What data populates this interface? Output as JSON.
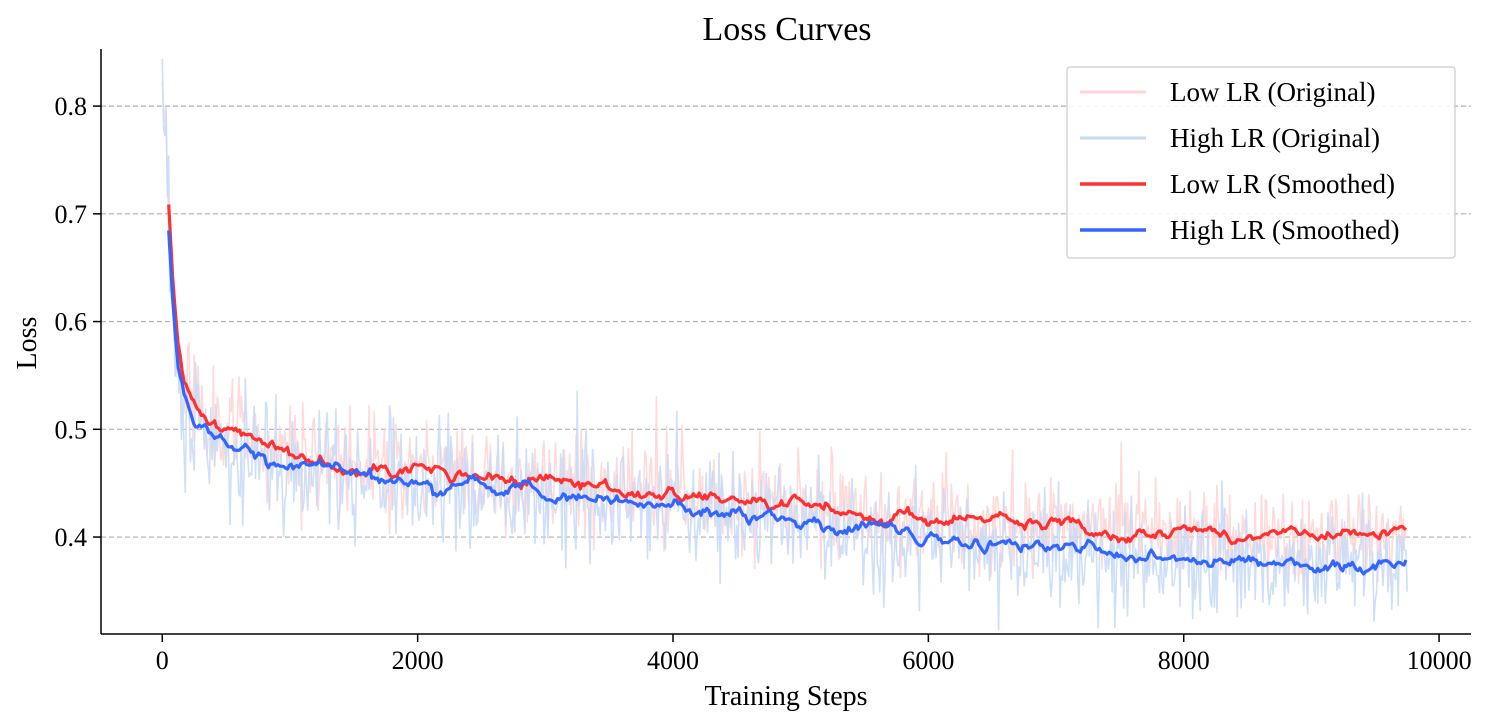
{
  "chart_data": {
    "type": "line",
    "title": "Loss Curves",
    "xlabel": "Training Steps",
    "ylabel": "Loss",
    "xlim": [
      -480,
      10250
    ],
    "ylim": [
      0.31,
      0.853
    ],
    "xticks": [
      0,
      2000,
      4000,
      6000,
      8000,
      10000
    ],
    "yticks": [
      0.4,
      0.5,
      0.6,
      0.7,
      0.8
    ],
    "xtick_labels": [
      "0",
      "2000",
      "4000",
      "6000",
      "8000",
      "10000"
    ],
    "ytick_labels": [
      "0.4",
      "0.5",
      "0.6",
      "0.7",
      "0.8"
    ],
    "grid": "y-dashed",
    "legend_position": "top-right",
    "step_max": 9750,
    "series": [
      {
        "name": "Low LR (Original)",
        "color": "#ffd4d4",
        "kind": "raw",
        "noise": 0.022,
        "seed": 11,
        "anchors": [
          [
            0,
            0.83
          ],
          [
            25,
            0.79
          ],
          [
            50,
            0.72
          ],
          [
            80,
            0.64
          ],
          [
            120,
            0.575
          ],
          [
            170,
            0.54
          ],
          [
            250,
            0.522
          ],
          [
            400,
            0.508
          ],
          [
            600,
            0.496
          ],
          [
            800,
            0.487
          ],
          [
            1000,
            0.478
          ],
          [
            1500,
            0.469
          ],
          [
            2000,
            0.462
          ],
          [
            2500,
            0.456
          ],
          [
            3000,
            0.45
          ],
          [
            3500,
            0.445
          ],
          [
            4000,
            0.438
          ],
          [
            4500,
            0.433
          ],
          [
            5000,
            0.428
          ],
          [
            5500,
            0.423
          ],
          [
            6000,
            0.418
          ],
          [
            6500,
            0.414
          ],
          [
            7000,
            0.41
          ],
          [
            7500,
            0.407
          ],
          [
            8000,
            0.405
          ],
          [
            8500,
            0.402
          ],
          [
            9000,
            0.401
          ],
          [
            9750,
            0.4
          ]
        ]
      },
      {
        "name": "High LR (Original)",
        "color": "#c7d9f7",
        "kind": "raw",
        "noise": 0.026,
        "seed": 29,
        "anchors": [
          [
            0,
            0.8
          ],
          [
            25,
            0.76
          ],
          [
            50,
            0.705
          ],
          [
            80,
            0.625
          ],
          [
            120,
            0.56
          ],
          [
            170,
            0.525
          ],
          [
            250,
            0.505
          ],
          [
            400,
            0.49
          ],
          [
            600,
            0.48
          ],
          [
            800,
            0.473
          ],
          [
            1000,
            0.466
          ],
          [
            1500,
            0.458
          ],
          [
            2000,
            0.45
          ],
          [
            2500,
            0.444
          ],
          [
            3000,
            0.438
          ],
          [
            3500,
            0.433
          ],
          [
            4000,
            0.428
          ],
          [
            4500,
            0.421
          ],
          [
            5000,
            0.413
          ],
          [
            5500,
            0.407
          ],
          [
            6000,
            0.399
          ],
          [
            6500,
            0.394
          ],
          [
            7000,
            0.388
          ],
          [
            7500,
            0.383
          ],
          [
            8000,
            0.379
          ],
          [
            8500,
            0.377
          ],
          [
            9000,
            0.374
          ],
          [
            9750,
            0.374
          ]
        ]
      },
      {
        "name": "Low LR (Smoothed)",
        "color": "#ff3030",
        "kind": "smoothed",
        "noise": 0.004,
        "seed": 41,
        "anchors": [
          [
            50,
            0.705
          ],
          [
            80,
            0.64
          ],
          [
            120,
            0.575
          ],
          [
            170,
            0.54
          ],
          [
            250,
            0.522
          ],
          [
            400,
            0.508
          ],
          [
            600,
            0.496
          ],
          [
            800,
            0.487
          ],
          [
            1000,
            0.478
          ],
          [
            1500,
            0.469
          ],
          [
            2000,
            0.462
          ],
          [
            2500,
            0.456
          ],
          [
            3000,
            0.45
          ],
          [
            3500,
            0.445
          ],
          [
            4000,
            0.438
          ],
          [
            4500,
            0.433
          ],
          [
            5000,
            0.428
          ],
          [
            5500,
            0.423
          ],
          [
            6000,
            0.418
          ],
          [
            6500,
            0.414
          ],
          [
            7000,
            0.41
          ],
          [
            7500,
            0.407
          ],
          [
            8000,
            0.405
          ],
          [
            8500,
            0.402
          ],
          [
            9000,
            0.401
          ],
          [
            9750,
            0.4
          ]
        ]
      },
      {
        "name": "High LR (Smoothed)",
        "color": "#3366ff",
        "kind": "smoothed",
        "noise": 0.004,
        "seed": 57,
        "anchors": [
          [
            50,
            0.688
          ],
          [
            80,
            0.625
          ],
          [
            120,
            0.56
          ],
          [
            170,
            0.525
          ],
          [
            250,
            0.505
          ],
          [
            400,
            0.49
          ],
          [
            600,
            0.48
          ],
          [
            800,
            0.473
          ],
          [
            1000,
            0.466
          ],
          [
            1500,
            0.458
          ],
          [
            2000,
            0.45
          ],
          [
            2500,
            0.444
          ],
          [
            3000,
            0.438
          ],
          [
            3500,
            0.433
          ],
          [
            4000,
            0.428
          ],
          [
            4500,
            0.421
          ],
          [
            5000,
            0.413
          ],
          [
            5500,
            0.407
          ],
          [
            6000,
            0.399
          ],
          [
            6500,
            0.394
          ],
          [
            7000,
            0.388
          ],
          [
            7500,
            0.383
          ],
          [
            8000,
            0.379
          ],
          [
            8500,
            0.377
          ],
          [
            9000,
            0.374
          ],
          [
            9750,
            0.374
          ]
        ]
      }
    ]
  }
}
